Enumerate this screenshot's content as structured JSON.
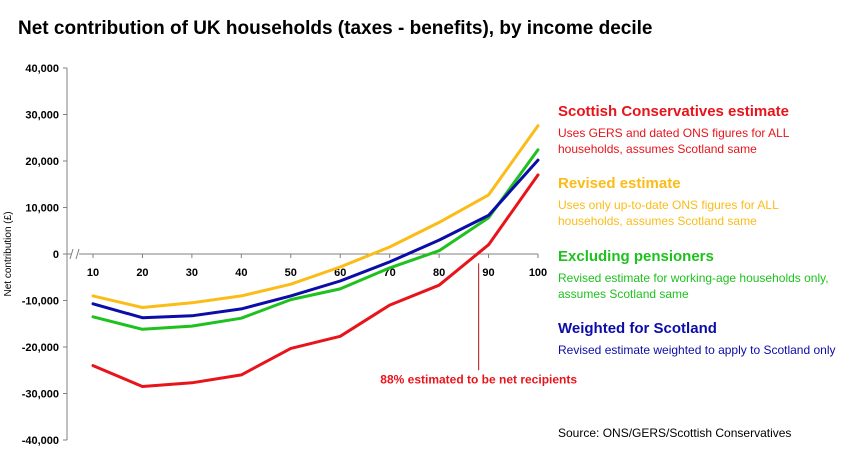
{
  "chart_data": {
    "type": "line",
    "title": "Net contribution of UK households (taxes - benefits), by income decile",
    "ylabel": "Net contribution (£)",
    "xlabel": "",
    "x": [
      10,
      20,
      30,
      40,
      50,
      60,
      70,
      80,
      90,
      100
    ],
    "x_tick_labels": [
      "10",
      "20",
      "30",
      "40",
      "50",
      "60",
      "70",
      "80",
      "90",
      "100"
    ],
    "y_ticks": [
      40000,
      30000,
      20000,
      10000,
      0,
      -10000,
      -20000,
      -30000,
      -40000
    ],
    "y_tick_labels": [
      "40,000",
      "30,000",
      "20,000",
      "10,000",
      "0",
      "-10,000",
      "-20,000",
      "-30,000",
      "-40,000"
    ],
    "ylim": [
      -40000,
      40000
    ],
    "xlim": [
      10,
      100
    ],
    "grid": false,
    "legend_position": "right",
    "series": [
      {
        "name": "Scottish Conservatives estimate",
        "description": "Uses GERS and dated ONS figures for ALL households, assumes Scotland same",
        "color": "#e8141b",
        "values": [
          -24000,
          -28500,
          -27700,
          -26000,
          -20300,
          -17700,
          -11000,
          -6700,
          2000,
          17000
        ]
      },
      {
        "name": "Revised estimate",
        "description": "Uses only up-to-date ONS figures for ALL households, assumes Scotland same",
        "color": "#fbbc18",
        "values": [
          -9000,
          -11500,
          -10500,
          -9000,
          -6500,
          -2800,
          1500,
          6800,
          12700,
          27600
        ]
      },
      {
        "name": "Excluding pensioners",
        "description": "Revised estimate for working-age households only, assumes Scotland same",
        "color": "#1ec11e",
        "values": [
          -13500,
          -16200,
          -15500,
          -13800,
          -9800,
          -7500,
          -3000,
          700,
          7800,
          22400
        ]
      },
      {
        "name": "Weighted for Scotland",
        "description": "Revised estimate weighted to apply to Scotland only",
        "color": "#0c0ca8",
        "values": [
          -10700,
          -13700,
          -13300,
          -11800,
          -9000,
          -5800,
          -1700,
          3000,
          8300,
          20200
        ]
      }
    ],
    "annotation": {
      "text": "88% estimated to be net recipients",
      "color": "#e8141b",
      "x": 88
    },
    "source": "Source: ONS/GERS/Scottish Conservatives"
  }
}
